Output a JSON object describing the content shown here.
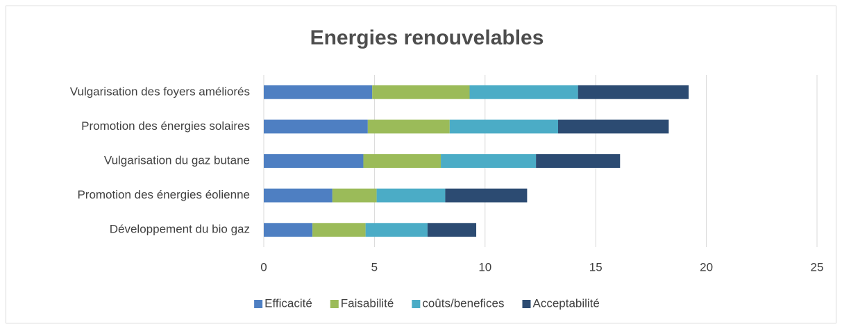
{
  "chart_data": {
    "type": "stacked_barh",
    "title": "Energies renouvelables",
    "categories": [
      "Vulgarisation des foyers améliorés",
      "Promotion des énergies solaires",
      "Vulgarisation du gaz butane",
      "Promotion des énergies éolienne",
      "Développement du bio gaz"
    ],
    "series": [
      {
        "name": "Efficacité",
        "color": "#4e7fc2",
        "values": [
          4.9,
          4.7,
          4.5,
          3.1,
          2.2
        ]
      },
      {
        "name": "Faisabilité",
        "color": "#9bbb59",
        "values": [
          4.4,
          3.7,
          3.5,
          2.0,
          2.4
        ]
      },
      {
        "name": "coûts/benefices",
        "color": "#4bacc6",
        "values": [
          4.9,
          4.9,
          4.3,
          3.1,
          2.8
        ]
      },
      {
        "name": "Acceptabilité",
        "color": "#2c4b72",
        "values": [
          5.0,
          5.0,
          3.8,
          3.7,
          2.2
        ]
      }
    ],
    "xlim": [
      0,
      25
    ],
    "xticks": [
      0,
      5,
      10,
      15,
      20,
      25
    ],
    "grid": true,
    "legend": "bottom"
  }
}
